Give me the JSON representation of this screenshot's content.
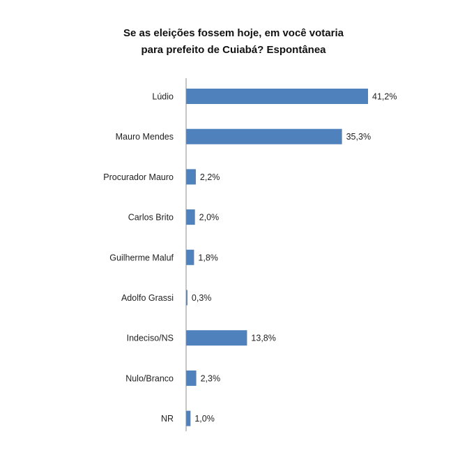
{
  "chart_data": {
    "type": "bar",
    "orientation": "horizontal",
    "title_lines": [
      "Se as eleições fossem hoje, em você votaria",
      "para prefeito de Cuiabá? Espontânea"
    ],
    "categories": [
      "Lúdio",
      "Mauro Mendes",
      "Procurador Mauro",
      "Carlos Brito",
      "Guilherme Maluf",
      "Adolfo Grassi",
      "Indeciso/NS",
      "Nulo/Branco",
      "NR"
    ],
    "values": [
      41.2,
      35.3,
      2.2,
      2.0,
      1.8,
      0.3,
      13.8,
      2.3,
      1.0
    ],
    "value_labels": [
      "41,2%",
      "35,3%",
      "2,2%",
      "2,0%",
      "1,8%",
      "0,3%",
      "13,8%",
      "2,3%",
      "1,0%"
    ],
    "bar_color": "#4f81bd",
    "xlim": [
      0,
      41.2
    ],
    "grid": false,
    "legend": "none"
  }
}
